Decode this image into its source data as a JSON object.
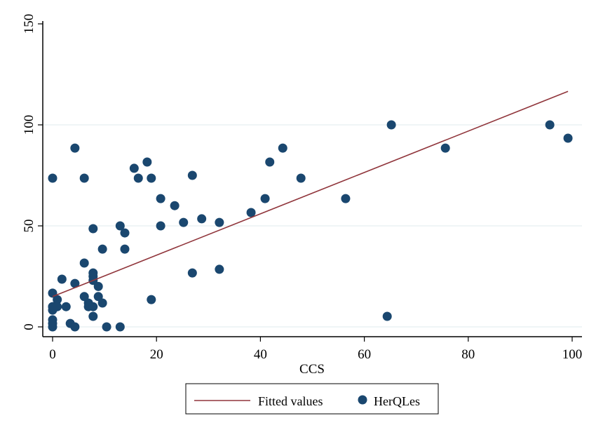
{
  "chart_data": {
    "type": "scatter",
    "title": "",
    "xlabel": "CCS",
    "ylabel": "",
    "xlim": [
      0,
      100
    ],
    "ylim": [
      0,
      150
    ],
    "xticks": [
      "0",
      "20",
      "40",
      "60",
      "80",
      "100"
    ],
    "yticks": [
      "0",
      "50",
      "100",
      "150"
    ],
    "grid": true,
    "legend_position": "bottom",
    "colors": {
      "points": "#1a476f",
      "line": "#90353b",
      "grid": "#eaf2f3"
    },
    "fit": {
      "name": "Fitted values",
      "intercept": 15.0,
      "slope": 1.024,
      "x_range": [
        0,
        99.2
      ]
    },
    "series": [
      {
        "name": "HerQLes",
        "points": [
          [
            0,
            73.6
          ],
          [
            0,
            16.7
          ],
          [
            0,
            10
          ],
          [
            0,
            8.3
          ],
          [
            0,
            10
          ],
          [
            0,
            3.5
          ],
          [
            0,
            1.7
          ],
          [
            0,
            0
          ],
          [
            0.9,
            13.5
          ],
          [
            0.9,
            10
          ],
          [
            1.8,
            23.6
          ],
          [
            2.6,
            10
          ],
          [
            3.4,
            1.7
          ],
          [
            4.3,
            0
          ],
          [
            4.3,
            88.5
          ],
          [
            4.3,
            21.5
          ],
          [
            6.1,
            73.6
          ],
          [
            6.1,
            31.6
          ],
          [
            6.1,
            15
          ],
          [
            6.9,
            11.8
          ],
          [
            6.9,
            10
          ],
          [
            7.8,
            48.6
          ],
          [
            7.8,
            26.7
          ],
          [
            7.8,
            25
          ],
          [
            7.8,
            23
          ],
          [
            7.8,
            10
          ],
          [
            7.8,
            5.2
          ],
          [
            8.8,
            20
          ],
          [
            8.8,
            15
          ],
          [
            9.6,
            38.5
          ],
          [
            9.6,
            11.8
          ],
          [
            10.4,
            0
          ],
          [
            13,
            0
          ],
          [
            13,
            50
          ],
          [
            13.9,
            46.5
          ],
          [
            13.9,
            38.5
          ],
          [
            15.7,
            78.5
          ],
          [
            16.5,
            73.6
          ],
          [
            18.2,
            81.6
          ],
          [
            19,
            73.6
          ],
          [
            19,
            13.5
          ],
          [
            20.8,
            63.5
          ],
          [
            20.8,
            50
          ],
          [
            23.5,
            60
          ],
          [
            25.2,
            51.7
          ],
          [
            26.9,
            75
          ],
          [
            26.9,
            26.7
          ],
          [
            28.7,
            53.5
          ],
          [
            32.1,
            51.7
          ],
          [
            32.1,
            28.5
          ],
          [
            38.2,
            56.6
          ],
          [
            40.9,
            63.5
          ],
          [
            41.8,
            81.6
          ],
          [
            44.3,
            88.5
          ],
          [
            47.8,
            73.6
          ],
          [
            56.4,
            63.5
          ],
          [
            64.4,
            5.2
          ],
          [
            65.2,
            100
          ],
          [
            75.6,
            88.5
          ],
          [
            95.7,
            100
          ],
          [
            99.2,
            93.4
          ]
        ]
      }
    ],
    "legend": [
      "Fitted values",
      "HerQLes"
    ]
  }
}
